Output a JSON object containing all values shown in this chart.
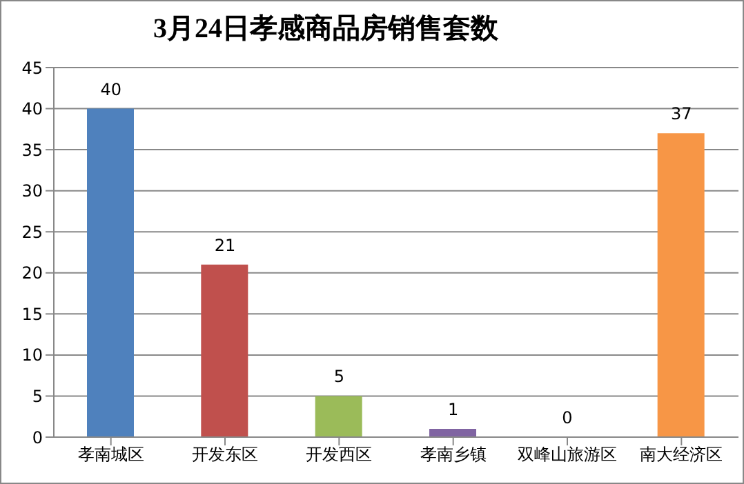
{
  "chart_data": {
    "type": "bar",
    "title": "3月24日孝感商品房销售套数",
    "categories": [
      "孝南城区",
      "开发东区",
      "开发西区",
      "孝南乡镇",
      "双峰山旅游区",
      "南大经济区"
    ],
    "values": [
      40,
      21,
      5,
      1,
      0,
      37
    ],
    "colors": [
      "#4f81bd",
      "#c0504d",
      "#9bbb59",
      "#8064a2",
      "#4bacc6",
      "#f79646"
    ],
    "ylim": [
      0,
      45
    ],
    "yticks": [
      0,
      5,
      10,
      15,
      20,
      25,
      30,
      35,
      40,
      45
    ],
    "grid": "y",
    "data_labels": true
  }
}
